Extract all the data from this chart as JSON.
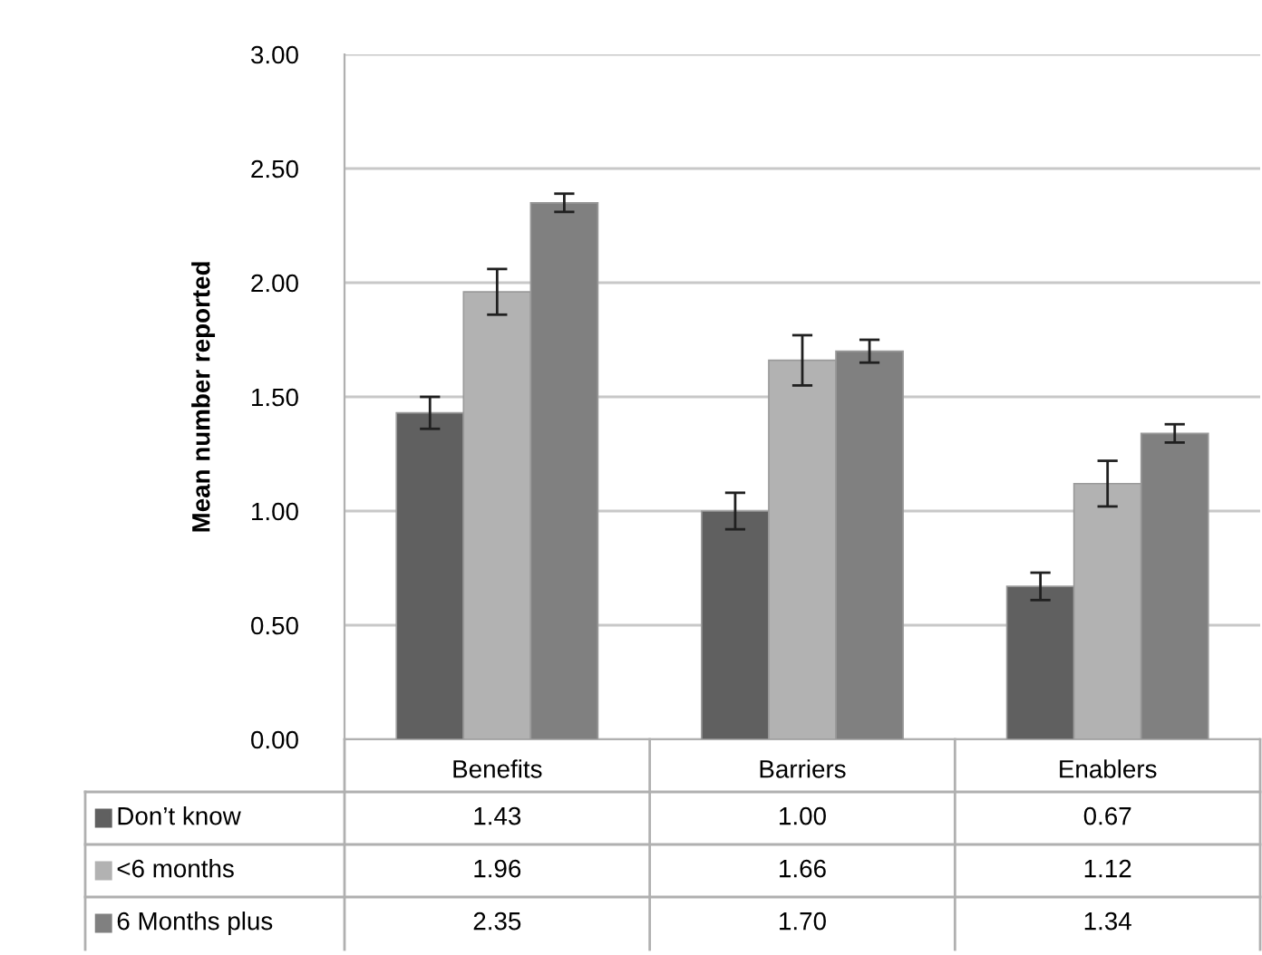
{
  "chart_data": {
    "type": "bar",
    "ylabel": "Mean number reported",
    "categories": [
      "Benefits",
      "Barriers",
      "Enablers"
    ],
    "series": [
      {
        "name": "Don’t know",
        "color": "#606060",
        "values": [
          1.43,
          1.0,
          0.67
        ],
        "value_labels": [
          "1.43",
          "1.00",
          "0.67"
        ],
        "errors": [
          0.07,
          0.08,
          0.06
        ]
      },
      {
        "name": "<6 months",
        "color": "#b2b2b2",
        "values": [
          1.96,
          1.66,
          1.12
        ],
        "value_labels": [
          "1.96",
          "1.66",
          "1.12"
        ],
        "errors": [
          0.1,
          0.11,
          0.1
        ]
      },
      {
        "name": "6 Months plus",
        "color": "#808080",
        "values": [
          2.35,
          1.7,
          1.34
        ],
        "value_labels": [
          "2.35",
          "1.70",
          "1.34"
        ],
        "errors": [
          0.04,
          0.05,
          0.04
        ]
      }
    ],
    "ylim": [
      0,
      3
    ],
    "yticks": [
      {
        "value": 0,
        "label": "0.00"
      },
      {
        "value": 0.5,
        "label": "0.50"
      },
      {
        "value": 1,
        "label": "1.00"
      },
      {
        "value": 1.5,
        "label": "1.50"
      },
      {
        "value": 2,
        "label": "2.00"
      },
      {
        "value": 2.5,
        "label": "2.50"
      },
      {
        "value": 3,
        "label": "3.00"
      }
    ],
    "grid": "y",
    "legend": "bottom left"
  }
}
